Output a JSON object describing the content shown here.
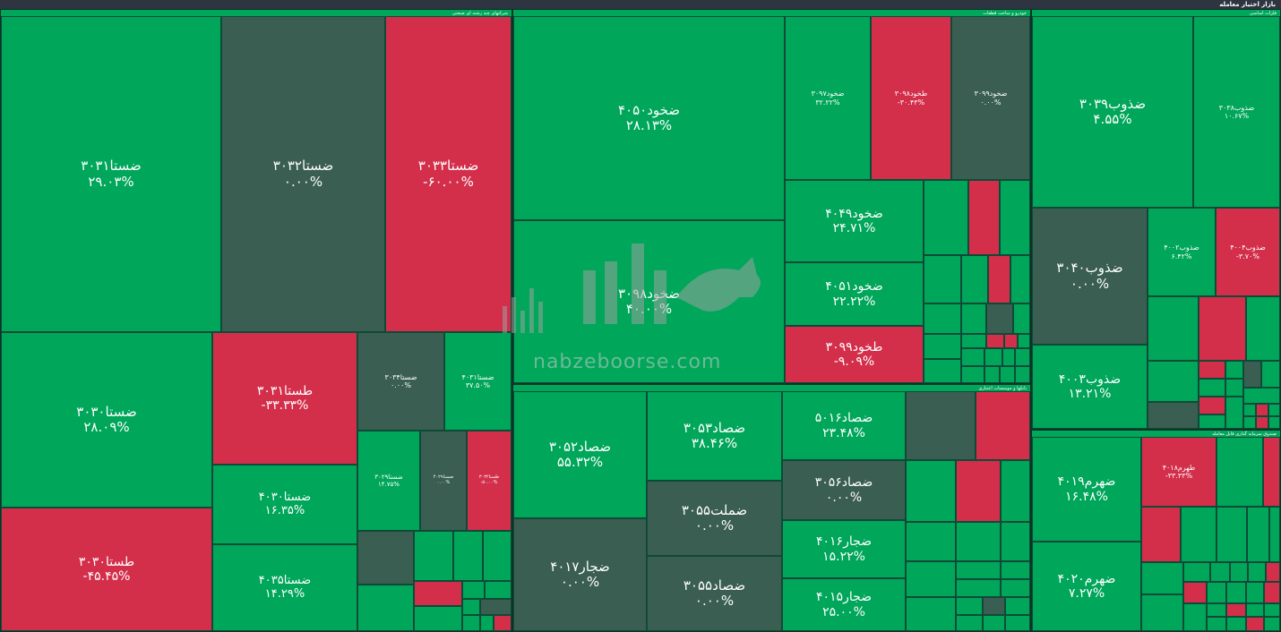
{
  "header": {
    "title": "بازار اختیار معامله"
  },
  "watermark": {
    "text": "nabzeboorse.com"
  },
  "colors": {
    "up": "#00a65a",
    "down": "#d32f4b",
    "flat": "#3a5e52"
  },
  "sectors": [
    {
      "id": "s1",
      "title": "شرکتهای چند رشته ای صنعتی"
    },
    {
      "id": "s2",
      "title": "خودرو و ساخت قطعات"
    },
    {
      "id": "s3",
      "title": "فلزات اساسی"
    },
    {
      "id": "s4",
      "title": "بانکها و موسسات اعتباری"
    },
    {
      "id": "s5",
      "title": "صندوق سرمایه گذاری قابل معامله"
    }
  ],
  "tiles": [
    {
      "name": "ضستا۳۰۳۱",
      "pct": "۲۹.۰۳%",
      "state": "g"
    },
    {
      "name": "ضستا۳۰۳۲",
      "pct": "۰.۰۰%",
      "state": "z"
    },
    {
      "name": "ضستا۳۰۳۳",
      "pct": "-۶۰.۰۰%",
      "state": "r"
    },
    {
      "name": "ضستا۳۰۳۰",
      "pct": "۲۸.۰۹%",
      "state": "g"
    },
    {
      "name": "طستا۳۰۳۱",
      "pct": "-۳۳.۳۳%",
      "state": "r"
    },
    {
      "name": "ضستا۳۰۳۴",
      "pct": "۰.۰۰%",
      "state": "z"
    },
    {
      "name": "ضستا۴۰۳۱",
      "pct": "۳۷.۵۰%",
      "state": "g"
    },
    {
      "name": "ضستا۴۰۳۰",
      "pct": "۱۶.۳۵%",
      "state": "g"
    },
    {
      "name": "ضستا۳۰۲۹",
      "pct": "۱۴.۷۵%",
      "state": "g"
    },
    {
      "name": "ضستا۴۰۲۹",
      "pct": "۰.۰۰%",
      "state": "z"
    },
    {
      "name": "طستا۳۰۳۲",
      "pct": "-۵۰.۰۰%",
      "state": "r"
    },
    {
      "name": "طستا۳۰۳۰",
      "pct": "-۴۵.۴۵%",
      "state": "r"
    },
    {
      "name": "ضستا۴۰۳۵",
      "pct": "۱۴.۲۹%",
      "state": "g"
    },
    {
      "name": "ضخود۴۰۵۰",
      "pct": "۲۸.۱۳%",
      "state": "g"
    },
    {
      "name": "ضخود۳۰۹۸",
      "pct": "۴۰.۰۰%",
      "state": "g"
    },
    {
      "name": "ضخود۳۰۹۷",
      "pct": "۳۲.۲۲%",
      "state": "g"
    },
    {
      "name": "طخود۳۰۹۸",
      "pct": "-۳۰.۴۳%",
      "state": "r"
    },
    {
      "name": "ضخود۳۰۹۹",
      "pct": "۰.۰۰%",
      "state": "z"
    },
    {
      "name": "ضخود۴۰۴۹",
      "pct": "۲۴.۷۱%",
      "state": "g"
    },
    {
      "name": "ضخود۴۰۵۱",
      "pct": "۲۲.۲۲%",
      "state": "g"
    },
    {
      "name": "طخود۳۰۹۹",
      "pct": "-۹.۰۹%",
      "state": "r"
    },
    {
      "name": "ضذوب۳۰۳۹",
      "pct": "۴.۵۵%",
      "state": "g"
    },
    {
      "name": "ضذوب۳۰۳۸",
      "pct": "۱۰.۶۷%",
      "state": "g"
    },
    {
      "name": "ضذوب۳۰۴۰",
      "pct": "۰.۰۰%",
      "state": "z"
    },
    {
      "name": "ضذوب۴۰۰۲",
      "pct": "۶.۴۲%",
      "state": "g"
    },
    {
      "name": "ضذوب۴۰۰۴",
      "pct": "-۳.۷۰%",
      "state": "r"
    },
    {
      "name": "ضذوب۴۰۰۳",
      "pct": "۱۳.۲۱%",
      "state": "g"
    },
    {
      "name": "ضصاد۳۰۵۲",
      "pct": "۵۵.۳۲%",
      "state": "g"
    },
    {
      "name": "ضصاد۳۰۵۳",
      "pct": "۳۸.۴۶%",
      "state": "g"
    },
    {
      "name": "ضصاد۵۰۱۶",
      "pct": "۲۳.۴۸%",
      "state": "g"
    },
    {
      "name": "ضصاد۳۰۵۶",
      "pct": "۰.۰۰%",
      "state": "z"
    },
    {
      "name": "ضملت۳۰۵۵",
      "pct": "۰.۰۰%",
      "state": "z"
    },
    {
      "name": "ضجار۴۰۱۷",
      "pct": "۰.۰۰%",
      "state": "z"
    },
    {
      "name": "ضجار۴۰۱۶",
      "pct": "۱۵.۲۲%",
      "state": "g"
    },
    {
      "name": "ضصاد۳۰۵۵",
      "pct": "۰.۰۰%",
      "state": "z"
    },
    {
      "name": "ضجار۴۰۱۵",
      "pct": "۲۵.۰۰%",
      "state": "g"
    },
    {
      "name": "ضهرم۴۰۱۹",
      "pct": "۱۶.۴۸%",
      "state": "g"
    },
    {
      "name": "طهرم۴۰۱۸",
      "pct": "-۳۳.۳۳%",
      "state": "r"
    },
    {
      "name": "ضهرم۴۰۲۰",
      "pct": "۷.۲۷%",
      "state": "g"
    }
  ]
}
